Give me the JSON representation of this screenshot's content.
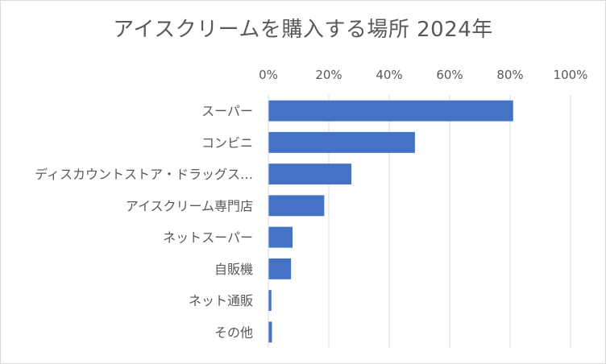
{
  "chart_data": {
    "type": "bar",
    "orientation": "horizontal",
    "title": "アイスクリームを購入する場所 2024年",
    "categories": [
      "スーパー",
      "コンビニ",
      "ディスカウントストア・ドラッグス…",
      "アイスクリーム専門店",
      "ネットスーパー",
      "自販機",
      "ネット通販",
      "その他"
    ],
    "values": [
      81,
      48.5,
      27.5,
      18.5,
      8,
      7.5,
      1,
      1.2
    ],
    "unit": "%",
    "xlim": [
      0,
      100
    ],
    "xticks": [
      "0%",
      "20%",
      "40%",
      "60%",
      "80%",
      "100%"
    ],
    "grid": "vertical",
    "axis_position": "top",
    "bar_color": "#4472c4",
    "grid_color": "#d9d9d9"
  }
}
